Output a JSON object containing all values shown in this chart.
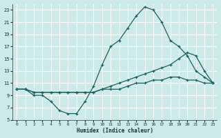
{
  "xlabel": "Humidex (Indice chaleur)",
  "bg_color": "#cceaea",
  "grid_color": "#ffffff",
  "line_color": "#1a6060",
  "xlim": [
    -0.5,
    23.5
  ],
  "ylim": [
    5,
    24
  ],
  "yticks": [
    5,
    7,
    9,
    11,
    13,
    15,
    17,
    19,
    21,
    23
  ],
  "xticks": [
    0,
    1,
    2,
    3,
    4,
    5,
    6,
    7,
    8,
    9,
    10,
    11,
    12,
    13,
    14,
    15,
    16,
    17,
    18,
    19,
    20,
    21,
    22,
    23
  ],
  "line1_x": [
    0,
    1,
    2,
    3,
    4,
    5,
    6,
    7,
    8,
    9,
    10,
    11,
    12,
    13,
    14,
    15,
    16,
    17,
    18,
    19,
    20,
    21,
    22,
    23
  ],
  "line1_y": [
    10,
    10,
    9,
    9,
    8,
    6.5,
    6,
    6,
    8,
    10.5,
    14,
    17,
    18,
    20,
    22,
    23.5,
    23,
    21,
    18,
    17,
    15.5,
    13,
    12,
    11
  ],
  "line2_x": [
    0,
    1,
    2,
    3,
    4,
    5,
    6,
    7,
    8,
    9,
    10,
    11,
    12,
    13,
    14,
    15,
    16,
    17,
    18,
    19,
    20,
    21,
    22,
    23
  ],
  "line2_y": [
    10,
    10,
    9.5,
    9.5,
    9.5,
    9.5,
    9.5,
    9.5,
    9.5,
    9.5,
    10,
    10.5,
    11,
    11.5,
    12,
    12.5,
    13,
    13.5,
    14,
    15,
    16,
    15.5,
    13,
    11
  ],
  "line3_x": [
    0,
    1,
    2,
    3,
    4,
    5,
    6,
    7,
    8,
    9,
    10,
    11,
    12,
    13,
    14,
    15,
    16,
    17,
    18,
    19,
    20,
    21,
    22,
    23
  ],
  "line3_y": [
    10,
    10,
    9.5,
    9.5,
    9.5,
    9.5,
    9.5,
    9.5,
    9.5,
    9.5,
    10,
    10,
    10,
    10.5,
    11,
    11,
    11.5,
    11.5,
    12,
    12,
    11.5,
    11.5,
    11,
    11
  ]
}
